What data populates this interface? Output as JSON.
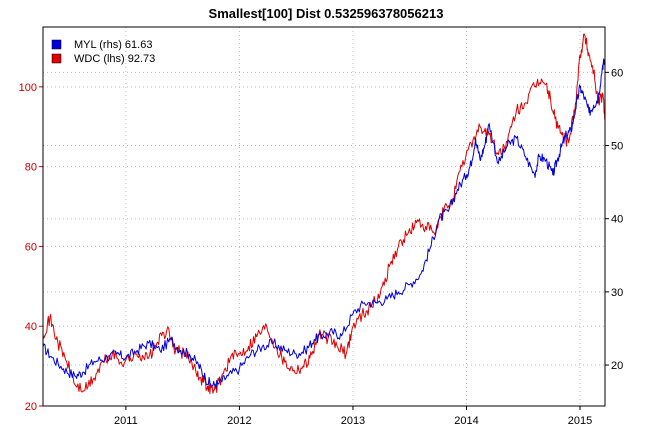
{
  "chart_data": {
    "type": "line",
    "title": "Smallest[100] Dist 0.532596378056213",
    "xlabel": "",
    "ylabel_left": "",
    "ylabel_right": "",
    "x_range": [
      2010.27,
      2015.22
    ],
    "x_ticks": [
      2011,
      2012,
      2013,
      2014,
      2015
    ],
    "x_tick_labels": [
      "2011",
      "2012",
      "2013",
      "2014",
      "2015"
    ],
    "y_left_range": [
      20,
      115
    ],
    "y_left_ticks": [
      20,
      40,
      60,
      80,
      100
    ],
    "y_left_tick_labels": [
      "20",
      "40",
      "60",
      "80",
      "100"
    ],
    "y_right_range": [
      14.4,
      66.2
    ],
    "y_right_ticks": [
      20,
      30,
      40,
      50,
      60
    ],
    "y_right_tick_labels": [
      "20",
      "30",
      "40",
      "50",
      "60"
    ],
    "grid": true,
    "legend_position": "top-left",
    "colors": {
      "left_axis": "#cc0000",
      "grid": "#bbbbbb"
    },
    "series": [
      {
        "name": "MYL (rhs) 61.63",
        "axis": "right",
        "color": "#0000dd",
        "x": [
          2010.27,
          2010.35,
          2010.45,
          2010.55,
          2010.62,
          2010.72,
          2010.82,
          2010.92,
          2011.0,
          2011.1,
          2011.2,
          2011.3,
          2011.4,
          2011.48,
          2011.56,
          2011.64,
          2011.7,
          2011.76,
          2011.82,
          2011.9,
          2012.0,
          2012.1,
          2012.2,
          2012.3,
          2012.4,
          2012.5,
          2012.58,
          2012.66,
          2012.74,
          2012.82,
          2012.9,
          2013.0,
          2013.1,
          2013.2,
          2013.3,
          2013.4,
          2013.5,
          2013.6,
          2013.68,
          2013.76,
          2013.84,
          2013.92,
          2014.0,
          2014.04,
          2014.08,
          2014.12,
          2014.16,
          2014.2,
          2014.28,
          2014.36,
          2014.44,
          2014.52,
          2014.6,
          2014.64,
          2014.7,
          2014.76,
          2014.8,
          2014.84,
          2014.88,
          2014.92,
          2014.96,
          2015.0,
          2015.04,
          2015.08,
          2015.12,
          2015.16,
          2015.2,
          2015.22
        ],
        "y": [
          22.5,
          21.0,
          19.5,
          18.5,
          19.0,
          20.5,
          21.0,
          21.5,
          21.0,
          22.0,
          23.0,
          22.0,
          23.5,
          22.0,
          21.5,
          20.0,
          18.2,
          17.2,
          17.5,
          18.5,
          19.5,
          21.5,
          22.5,
          23.0,
          22.0,
          21.5,
          22.0,
          23.5,
          24.0,
          24.5,
          24.0,
          27.0,
          28.5,
          28.5,
          29.0,
          30.0,
          31.0,
          32.5,
          36.0,
          40.0,
          41.0,
          44.0,
          46.0,
          47.5,
          51.0,
          48.0,
          50.0,
          53.0,
          47.5,
          50.0,
          51.0,
          48.5,
          46.0,
          48.5,
          48.0,
          46.0,
          48.0,
          50.0,
          51.5,
          52.0,
          55.0,
          58.0,
          56.5,
          54.5,
          55.5,
          56.5,
          61.0,
          61.63
        ]
      },
      {
        "name": "WDC (lhs) 92.73",
        "axis": "left",
        "color": "#dd0000",
        "x": [
          2010.27,
          2010.33,
          2010.4,
          2010.48,
          2010.56,
          2010.64,
          2010.72,
          2010.8,
          2010.88,
          2010.96,
          2011.04,
          2011.12,
          2011.2,
          2011.28,
          2011.36,
          2011.44,
          2011.52,
          2011.6,
          2011.66,
          2011.72,
          2011.78,
          2011.84,
          2011.92,
          2012.0,
          2012.08,
          2012.16,
          2012.24,
          2012.32,
          2012.4,
          2012.48,
          2012.56,
          2012.62,
          2012.7,
          2012.78,
          2012.86,
          2012.94,
          2013.0,
          2013.08,
          2013.16,
          2013.24,
          2013.32,
          2013.4,
          2013.48,
          2013.56,
          2013.64,
          2013.72,
          2013.8,
          2013.88,
          2013.96,
          2014.04,
          2014.12,
          2014.2,
          2014.28,
          2014.36,
          2014.44,
          2014.52,
          2014.6,
          2014.66,
          2014.72,
          2014.78,
          2014.84,
          2014.9,
          2014.96,
          2015.0,
          2015.04,
          2015.08,
          2015.12,
          2015.16,
          2015.2,
          2015.22
        ],
        "y": [
          38.0,
          42.0,
          36.0,
          31.0,
          25.0,
          24.0,
          27.0,
          31.0,
          33.0,
          31.0,
          32.0,
          33.0,
          32.0,
          36.0,
          39.0,
          34.0,
          33.0,
          30.0,
          27.0,
          25.0,
          24.0,
          27.0,
          32.0,
          33.0,
          35.0,
          38.0,
          40.0,
          35.0,
          31.0,
          29.0,
          30.0,
          32.0,
          38.0,
          37.0,
          35.0,
          33.0,
          40.0,
          43.0,
          45.0,
          48.0,
          55.0,
          60.0,
          63.0,
          66.0,
          65.0,
          63.0,
          69.0,
          72.0,
          80.0,
          86.0,
          90.0,
          88.0,
          83.0,
          86.0,
          94.0,
          96.0,
          100.0,
          102.0,
          99.0,
          92.0,
          88.0,
          86.0,
          96.0,
          108.0,
          113.0,
          108.0,
          104.0,
          96.0,
          98.0,
          92.73
        ]
      }
    ]
  }
}
